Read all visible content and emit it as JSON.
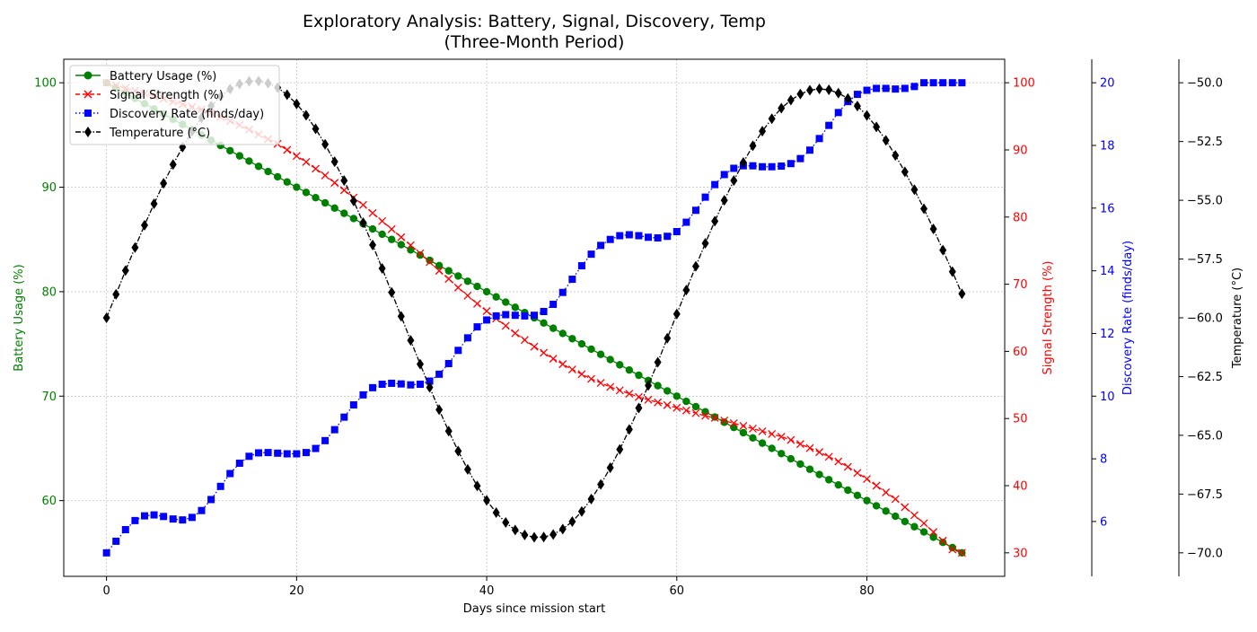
{
  "chart_data": {
    "type": "line",
    "title": "Exploratory Analysis: Battery, Signal, Discovery, Temp",
    "subtitle": "(Three-Month Period)",
    "xlabel": "Days since mission start",
    "x_ticks": [
      0,
      20,
      40,
      60,
      80
    ],
    "xlim": [
      -4.5,
      94.5
    ],
    "grid": true,
    "legend_position": "upper left",
    "series": [
      {
        "name": "Battery Usage (%)",
        "axis": "left",
        "color": "#008000",
        "marker": "circle",
        "linestyle": "solid",
        "ylabel": "Battery Usage (%)",
        "ylim": [
          52.75,
          102.25
        ],
        "ticks": [
          60,
          70,
          80,
          90,
          100
        ],
        "formula": "linear from 100 at day 0 to 55 at day 90, one point per day",
        "values": [
          100.0,
          99.5,
          99.0,
          98.5,
          98.0,
          97.5,
          97.0,
          96.5,
          96.0,
          95.5,
          95.0,
          94.5,
          94.0,
          93.5,
          93.0,
          92.5,
          92.0,
          91.5,
          91.0,
          90.5,
          90.0,
          89.5,
          89.0,
          88.5,
          88.0,
          87.5,
          87.0,
          86.5,
          86.0,
          85.5,
          85.0,
          84.5,
          84.0,
          83.5,
          83.0,
          82.5,
          82.0,
          81.5,
          81.0,
          80.5,
          80.0,
          79.5,
          79.0,
          78.5,
          78.0,
          77.5,
          77.0,
          76.5,
          76.0,
          75.5,
          75.0,
          74.5,
          74.0,
          73.5,
          73.0,
          72.5,
          72.0,
          71.5,
          71.0,
          70.5,
          70.0,
          69.5,
          69.0,
          68.5,
          68.0,
          67.5,
          67.0,
          66.5,
          66.0,
          65.5,
          65.0,
          64.5,
          64.0,
          63.5,
          63.0,
          62.5,
          62.0,
          61.5,
          61.0,
          60.5,
          60.0,
          59.5,
          59.0,
          58.5,
          58.0,
          57.5,
          57.0,
          56.5,
          56.0,
          55.5,
          55.0
        ]
      },
      {
        "name": "Signal Strength (%)",
        "axis": "right1",
        "color": "#ff0000",
        "marker": "x",
        "linestyle": "dashed",
        "ylabel": "Signal Strength (%)",
        "ylim": [
          26.5,
          103.5
        ],
        "ticks": [
          30,
          40,
          50,
          60,
          70,
          80,
          90,
          100
        ],
        "values": [
          100.0,
          99.6,
          99.2,
          98.8,
          98.4,
          98.0,
          97.6,
          97.2,
          96.8,
          96.4,
          96.0,
          95.5,
          94.9,
          94.3,
          93.7,
          93.0,
          92.3,
          91.6,
          90.9,
          90.0,
          89.1,
          88.2,
          87.2,
          86.2,
          85.1,
          84.0,
          82.9,
          81.8,
          80.6,
          79.4,
          78.2,
          77.0,
          75.8,
          74.6,
          73.3,
          72.0,
          70.8,
          69.5,
          68.3,
          67.1,
          66.0,
          64.9,
          63.8,
          62.7,
          61.7,
          60.7,
          59.8,
          58.9,
          58.1,
          57.3,
          56.6,
          55.9,
          55.3,
          54.7,
          54.2,
          53.7,
          53.2,
          52.8,
          52.4,
          52.0,
          51.6,
          51.2,
          50.8,
          50.4,
          50.1,
          49.7,
          49.3,
          48.9,
          48.5,
          48.1,
          47.7,
          47.3,
          46.8,
          46.2,
          45.6,
          45.0,
          44.3,
          43.6,
          42.8,
          41.9,
          41.0,
          40.0,
          39.0,
          38.0,
          36.8,
          35.6,
          34.4,
          33.1,
          31.8,
          30.5,
          30.0
        ]
      },
      {
        "name": "Discovery Rate (finds/day)",
        "axis": "right2",
        "color": "#0000ff",
        "marker": "square",
        "linestyle": "dotted",
        "ylabel": "Discovery Rate (finds/day)",
        "ylim": [
          4.25,
          20.75
        ],
        "ticks": [
          6,
          8,
          10,
          12,
          14,
          16,
          18,
          20
        ],
        "formula": "min(20, 5 + 15*t/90 + 0.5*sin(2*pi*t/15))",
        "values": [
          5.0,
          5.37,
          5.74,
          6.03,
          6.18,
          6.21,
          6.16,
          6.08,
          6.05,
          6.13,
          6.35,
          6.7,
          7.12,
          7.53,
          7.86,
          8.08,
          8.19,
          8.2,
          8.18,
          8.16,
          8.16,
          8.2,
          8.33,
          8.58,
          8.93,
          9.33,
          9.72,
          10.04,
          10.27,
          10.38,
          10.41,
          10.39,
          10.36,
          10.38,
          10.48,
          10.7,
          11.04,
          11.46,
          11.86,
          12.21,
          12.43,
          12.56,
          12.6,
          12.58,
          12.56,
          12.58,
          12.7,
          12.93,
          13.31,
          13.73,
          14.16,
          14.53,
          14.81,
          15.0,
          15.12,
          15.15,
          15.12,
          15.07,
          15.05,
          15.1,
          15.25,
          15.55,
          15.93,
          16.35,
          16.75,
          17.07,
          17.27,
          17.35,
          17.35,
          17.32,
          17.32,
          17.34,
          17.42,
          17.58,
          17.85,
          18.22,
          18.64,
          19.05,
          19.4,
          19.63,
          19.76,
          19.82,
          19.82,
          19.8,
          19.82,
          19.88,
          20.0,
          20.0,
          20.0,
          20.0,
          20.0
        ]
      },
      {
        "name": "Temperature (°C)",
        "axis": "right3",
        "color": "#000000",
        "marker": "diamond",
        "linestyle": "dashdot",
        "ylabel": "Temperature (°C)",
        "ylim": [
          -71.0,
          -49.0
        ],
        "ticks": [
          -70.0,
          -67.5,
          -65.0,
          -62.5,
          -60.0,
          -57.5,
          -55.0,
          -52.5,
          -50.0
        ],
        "formula": "-60 + 10*sin(2*pi*(t)/62)",
        "values": [
          -60.0,
          -59.0,
          -57.99,
          -57.01,
          -56.06,
          -55.15,
          -54.28,
          -53.48,
          -52.74,
          -52.07,
          -51.49,
          -50.99,
          -50.58,
          -50.27,
          -50.05,
          -49.94,
          -49.93,
          -50.02,
          -50.21,
          -50.51,
          -50.9,
          -51.38,
          -51.96,
          -52.62,
          -53.36,
          -54.16,
          -55.03,
          -55.95,
          -56.9,
          -57.9,
          -58.92,
          -59.94,
          -60.96,
          -61.97,
          -62.96,
          -63.91,
          -64.82,
          -65.67,
          -66.45,
          -67.15,
          -67.77,
          -68.29,
          -68.71,
          -69.03,
          -69.24,
          -69.34,
          -69.33,
          -69.22,
          -68.99,
          -68.67,
          -68.24,
          -67.71,
          -67.09,
          -66.38,
          -65.6,
          -64.75,
          -63.84,
          -62.88,
          -61.89,
          -60.87,
          -59.84,
          -58.82,
          -57.81,
          -56.83,
          -55.89,
          -55.0,
          -54.16,
          -53.39,
          -52.68,
          -52.06,
          -51.53,
          -51.08,
          -50.74,
          -50.48,
          -50.32,
          -50.26,
          -50.3,
          -50.44,
          -50.67,
          -50.99,
          -51.39,
          -51.88,
          -52.45,
          -53.09,
          -53.79,
          -54.55,
          -55.36,
          -56.22,
          -57.12,
          -58.04,
          -58.98
        ]
      }
    ]
  },
  "legend": {
    "items": [
      {
        "label": "Battery Usage (%)"
      },
      {
        "label": "Signal Strength (%)"
      },
      {
        "label": "Discovery Rate (finds/day)"
      },
      {
        "label": "Temperature (°C)"
      }
    ]
  },
  "colors": {
    "battery": "#008000",
    "signal": "#ff0000",
    "discovery": "#0000ff",
    "temperature": "#000000",
    "grid": "#b0b0b0"
  }
}
